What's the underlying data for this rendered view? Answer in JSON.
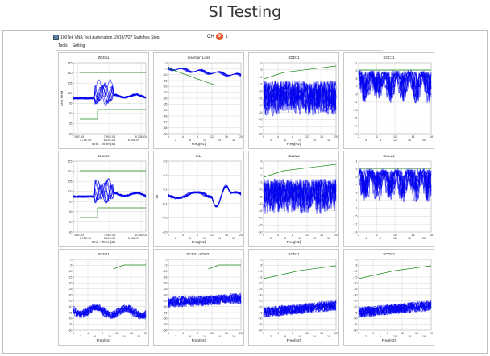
{
  "page_title": "SI Testing",
  "window": {
    "title": "100Tek VNA Test Automation, 2019/7/27 Switches Stop",
    "ime": "CH",
    "ime_logo": "S"
  },
  "menu": [
    "Tools",
    "Setting"
  ],
  "colors": {
    "trace": "#0000ee",
    "limit": "#1a8a1a",
    "grid": "#cccccc"
  },
  "charts": [
    {
      "title": "ZDD11",
      "kind": "tdr",
      "ylabel": "Unit: OHM",
      "yticks": [
        "115",
        "110",
        "105",
        "100",
        "95",
        "90",
        "85",
        "80"
      ],
      "xticks": [
        "7.55E-09",
        "7.95E-09",
        "8.35E-09"
      ],
      "xticks2": [
        "7.75E-09",
        "8.15E-09",
        "8.55E-09"
      ],
      "xlabel": "Unit : Time (S)"
    },
    {
      "title": "Insertion Loss",
      "kind": "il",
      "yticks": [
        "0",
        "-5",
        "-10",
        "-15",
        "-20",
        "-25",
        "-30",
        "-35",
        "-40",
        "-45",
        "-50",
        "-55",
        "-60"
      ],
      "xticks": [
        "0",
        "4",
        "8",
        "12",
        "16",
        "20"
      ],
      "xticks2": [
        "2",
        "6",
        "10",
        "14",
        "18"
      ],
      "xlabel": "Freq(Hz)"
    },
    {
      "title": "SDD11",
      "kind": "rl",
      "yticks": [
        "0",
        "-5",
        "-10",
        "-15",
        "-20",
        "-25",
        "-30",
        "-35",
        "-40",
        "-45",
        "-50"
      ],
      "xticks": [
        "0",
        "4",
        "8",
        "12",
        "16",
        "20"
      ],
      "xticks2": [
        "2",
        "6",
        "10",
        "14",
        "18"
      ],
      "xlabel": "Freq(Hz)"
    },
    {
      "title": "SCC11",
      "kind": "scc",
      "yticks": [
        "-1",
        "-3",
        "-5",
        "-7",
        "-9",
        "-11",
        "-13",
        "-15",
        "-17",
        "-19"
      ],
      "xticks": [
        "2",
        "6",
        "10",
        "14",
        "18"
      ],
      "xticks2": [
        "4",
        "8",
        "12",
        "16",
        "20"
      ],
      "xlabel": ""
    },
    {
      "title": "ZDD22",
      "kind": "tdr",
      "ylabel": "",
      "yticks": [
        "115",
        "110",
        "105",
        "100",
        "95",
        "90",
        "85",
        "80"
      ],
      "xticks": [
        "7.55E-09",
        "7.95E-09",
        "8.35E-09"
      ],
      "xticks2": [
        "7.75E-09",
        "8.15E-09",
        "8.55E-09"
      ],
      "xlabel": "Unit : Time (S)"
    },
    {
      "title": "ILD",
      "kind": "ild",
      "ylabel": "dB",
      "yticks": [
        "0.5",
        "0.3",
        "0.1",
        "-0.1",
        "-0.3",
        "-0.5"
      ],
      "xticks": [
        "0",
        "4",
        "8",
        "12",
        "16",
        "20"
      ],
      "xticks2": [
        "2",
        "6",
        "10",
        "14",
        "18"
      ],
      "xlabel": "Freq(Hz)"
    },
    {
      "title": "SDD22",
      "kind": "rl",
      "yticks": [
        "0",
        "-5",
        "-10",
        "-15",
        "-20",
        "-25",
        "-30",
        "-35",
        "-40",
        "-45",
        "-50"
      ],
      "xticks": [
        "0",
        "4",
        "8",
        "12",
        "16",
        "20"
      ],
      "xticks2": [
        "2",
        "6",
        "10",
        "14",
        "18"
      ],
      "xlabel": "Freq(Hz)"
    },
    {
      "title": "SCC22",
      "kind": "scc",
      "yticks": [
        "-1",
        "-3",
        "-5",
        "-7",
        "-9",
        "-11",
        "-13",
        "-15",
        "-17",
        "-19"
      ],
      "xticks": [
        "2",
        "6",
        "10",
        "14",
        "18"
      ],
      "xticks2": [
        "4",
        "8",
        "12",
        "16",
        "20"
      ],
      "xlabel": ""
    },
    {
      "title": "SCD21",
      "kind": "xt",
      "yticks": [
        "0",
        "-5",
        "-10",
        "-15",
        "-20",
        "-25",
        "-30",
        "-35",
        "-40",
        "-45",
        "-50",
        "-55",
        "-60"
      ],
      "xticks": [
        "0",
        "4",
        "8",
        "12",
        "16",
        "20"
      ],
      "xticks2": [
        "2",
        "6",
        "10",
        "14",
        "18"
      ],
      "xlabel": "Freq(Hz)"
    },
    {
      "title": "SCD21-SDD21",
      "kind": "xt2",
      "yticks": [
        "0",
        "-5",
        "-10",
        "-15",
        "-20",
        "-25",
        "-30",
        "-35",
        "-40",
        "-45",
        "-50",
        "-55",
        "-60"
      ],
      "xticks": [
        "0",
        "4",
        "8",
        "12",
        "16",
        "20"
      ],
      "xticks2": [
        "2",
        "6",
        "10",
        "14",
        "18"
      ],
      "xlabel": "Freq(Hz)"
    },
    {
      "title": "SCD11",
      "kind": "scd",
      "yticks": [
        "0",
        "-5",
        "-10",
        "-15",
        "-20",
        "-25",
        "-30",
        "-35",
        "-40",
        "-45",
        "-50",
        "-55",
        "-60"
      ],
      "xticks": [
        "0",
        "4",
        "8",
        "12",
        "16",
        "20"
      ],
      "xticks2": [
        "2",
        "6",
        "10",
        "14",
        "18"
      ],
      "xlabel": "Freq(Hz)"
    },
    {
      "title": "SCD22",
      "kind": "scd",
      "yticks": [
        "0",
        "-5",
        "-10",
        "-15",
        "-20",
        "-25",
        "-30",
        "-35",
        "-40",
        "-45",
        "-50",
        "-55",
        "-60"
      ],
      "xticks": [
        "0",
        "4",
        "8",
        "12",
        "16",
        "20"
      ],
      "xticks2": [
        "2",
        "6",
        "10",
        "14",
        "18"
      ],
      "xlabel": "Freq(Hz)"
    }
  ]
}
